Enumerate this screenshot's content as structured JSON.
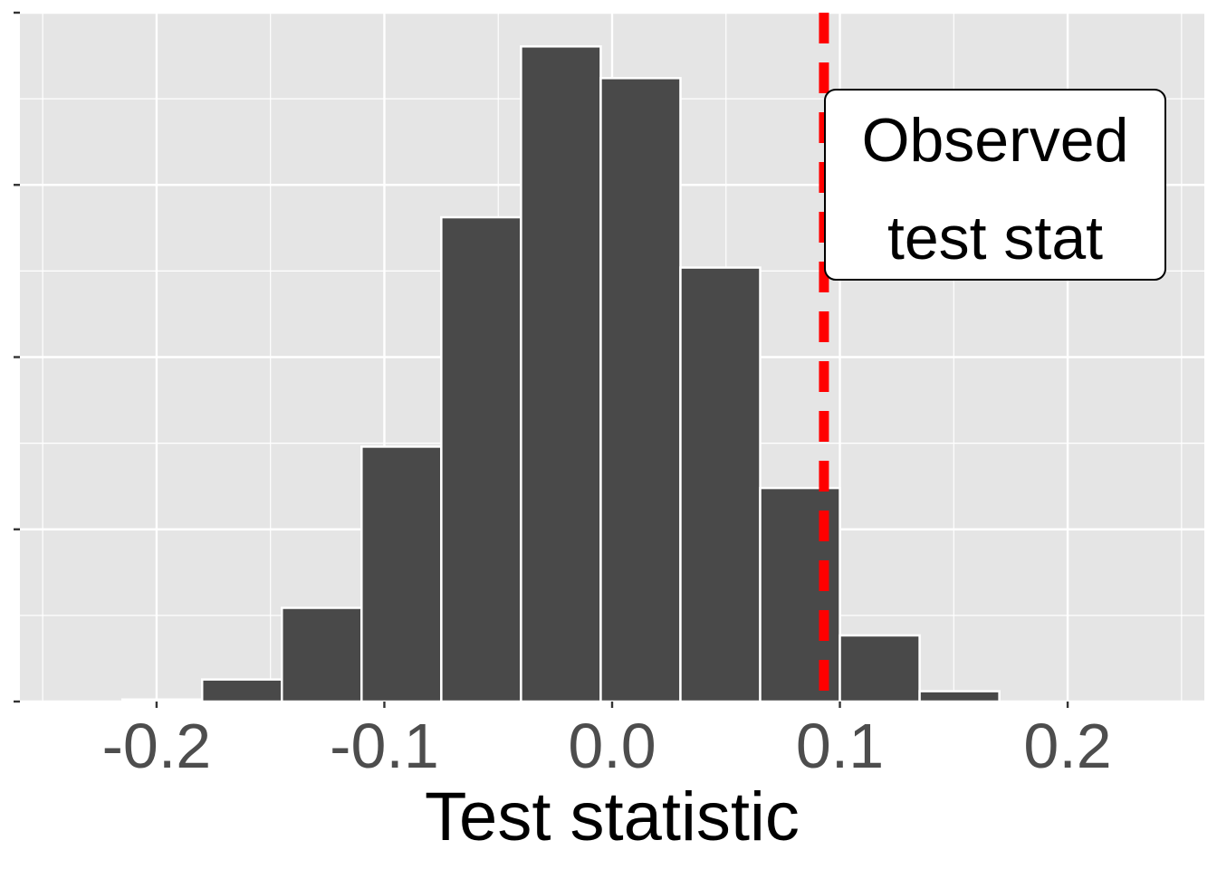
{
  "chart_data": {
    "type": "bar",
    "title": "",
    "xlabel": "Test statistic",
    "ylabel": "",
    "xlim": [
      -0.26,
      0.26
    ],
    "ylim": [
      0,
      1.0
    ],
    "x_ticks": [
      -0.2,
      -0.1,
      0.0,
      0.1,
      0.2
    ],
    "x_tick_labels": [
      "-0.2",
      "-0.1",
      "0.0",
      "0.1",
      "0.2"
    ],
    "y_ticks": [
      0,
      0.25,
      0.5,
      0.75,
      1.0
    ],
    "y_tick_labels_shown": false,
    "grid": true,
    "bins": [
      {
        "x0": -0.215,
        "x1": -0.18,
        "count": 0.003
      },
      {
        "x0": -0.18,
        "x1": -0.145,
        "count": 0.032
      },
      {
        "x0": -0.145,
        "x1": -0.11,
        "count": 0.136
      },
      {
        "x0": -0.11,
        "x1": -0.075,
        "count": 0.37
      },
      {
        "x0": -0.075,
        "x1": -0.04,
        "count": 0.703
      },
      {
        "x0": -0.04,
        "x1": -0.005,
        "count": 0.951
      },
      {
        "x0": -0.005,
        "x1": 0.03,
        "count": 0.905
      },
      {
        "x0": 0.03,
        "x1": 0.065,
        "count": 0.63
      },
      {
        "x0": 0.065,
        "x1": 0.1,
        "count": 0.31
      },
      {
        "x0": 0.1,
        "x1": 0.135,
        "count": 0.096
      },
      {
        "x0": 0.135,
        "x1": 0.17,
        "count": 0.015
      }
    ],
    "observed_value": 0.093,
    "annotation_lines": [
      "Observed",
      "test stat"
    ],
    "colors": {
      "panel": "#e5e5e5",
      "grid": "#ffffff",
      "bar_fill": "#494949",
      "bar_edge": "#ffffff",
      "vline": "#ff0000"
    }
  }
}
